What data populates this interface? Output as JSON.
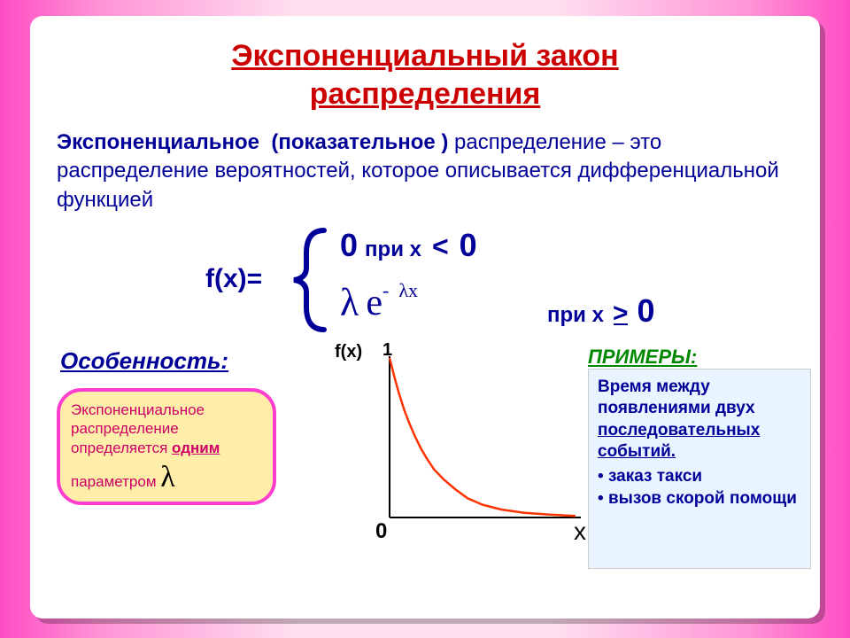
{
  "title_line1": "Экспоненциальный закон",
  "title_line2": "распределения",
  "definition": {
    "bold1": "Экспоненциальное",
    "bold2": "(показательное )",
    "rest": "распределение – это распределение вероятностей, которое описывается дифференциальной функцией"
  },
  "formula": {
    "fx": "f(x)=",
    "case1_zero": "0",
    "case1_pri": "при х",
    "case1_lt": "<",
    "case1_rhs": "0",
    "lambda": "λ",
    "e": "e",
    "exp_minus": "-",
    "exp_lambda": "λ",
    "exp_x": "x",
    "case2_pri": "при х",
    "case2_ge": ">",
    "case2_rhs": "0"
  },
  "feature": {
    "label": "Особенность:",
    "text_pre": "Экспоненциальное распределение определяется ",
    "text_bold": "одним",
    "text_post": " параметром",
    "lambda": "λ"
  },
  "chart": {
    "fx_label": "f(x)",
    "one": "1",
    "zero": "0",
    "x": "x",
    "axis_color": "#000000",
    "curve_color": "#ff3300",
    "curve_width": 2.5,
    "bg_color": "#ffffff",
    "xlim": [
      0,
      5
    ],
    "ylim": [
      0,
      1
    ],
    "points": [
      [
        0.0,
        1.0
      ],
      [
        0.12,
        0.89
      ],
      [
        0.25,
        0.78
      ],
      [
        0.4,
        0.67
      ],
      [
        0.55,
        0.58
      ],
      [
        0.7,
        0.5
      ],
      [
        0.85,
        0.43
      ],
      [
        1.0,
        0.37
      ],
      [
        1.2,
        0.3
      ],
      [
        1.45,
        0.24
      ],
      [
        1.75,
        0.18
      ],
      [
        2.1,
        0.12
      ],
      [
        2.5,
        0.08
      ],
      [
        3.0,
        0.05
      ],
      [
        3.6,
        0.03
      ],
      [
        4.3,
        0.018
      ],
      [
        5.0,
        0.01
      ]
    ]
  },
  "examples": {
    "label": "ПРИМЕРЫ:",
    "lead_pre": "Время между появлениями двух ",
    "lead_uline": "последовательных событий.",
    "item1": "заказ такси",
    "item2": "вызов скорой помощи"
  },
  "colors": {
    "title": "#cc0000",
    "body": "#000099",
    "feature_border": "#ff3ed0",
    "feature_bg": "#ffeeaa",
    "feature_text": "#cc0066",
    "examples_label": "#008800",
    "examples_bg": "#e8f4ff"
  }
}
